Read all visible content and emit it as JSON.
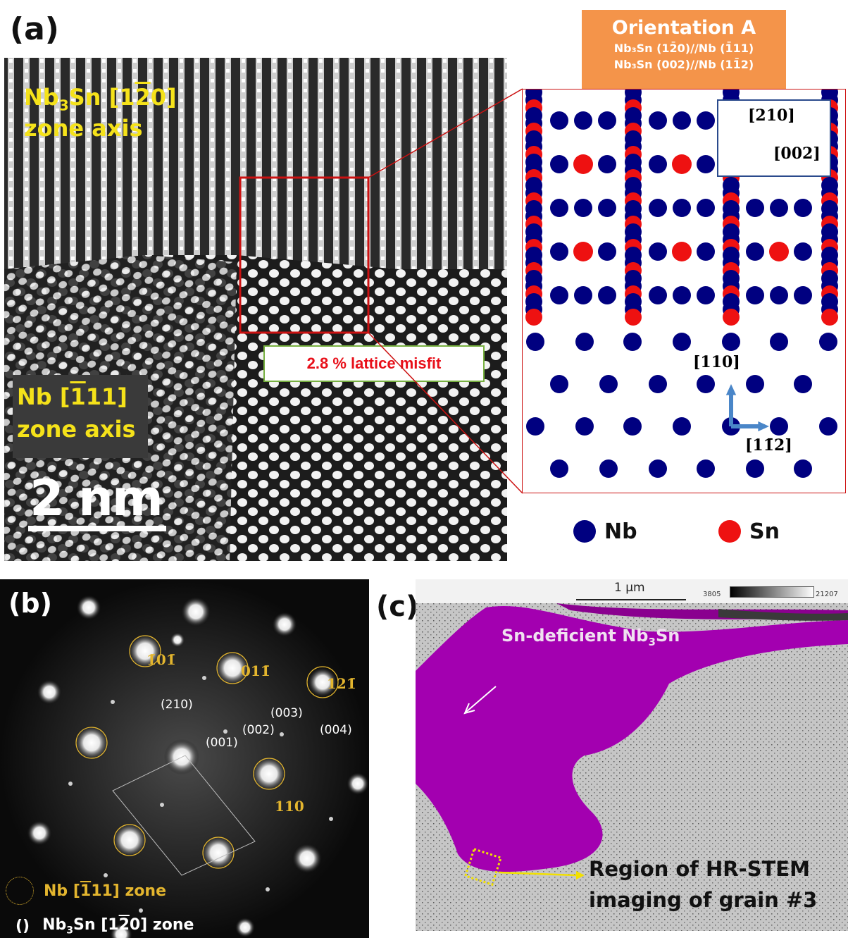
{
  "panel_a": {
    "label": "(a)",
    "hrtem": {
      "upper_label_line1_prefix": "Nb",
      "upper_label_sub": "3",
      "upper_label_line1_mid": "Sn [1",
      "upper_label_line1_bar": "2",
      "upper_label_line1_end": "0]",
      "upper_label_line2": "zone axis",
      "lower_label_line1_prefix": "Nb [",
      "lower_label_line1_bar": "1",
      "lower_label_line1_end": "11]",
      "lower_label_line2": "zone axis",
      "scale_bar_label": "2 nm",
      "misfit_label": "2.8 % lattice misfit"
    },
    "orientation": {
      "title": "Orientation A",
      "line1": "Nb₃Sn (12̄0)//Nb (1̄11)",
      "line2": "Nb₃Sn (002)//Nb (11̄2)"
    },
    "schematic": {
      "dir_210": "[210]",
      "dir_002": "[002]",
      "dir_110": "[110]",
      "dir_112": "[11̄2]"
    },
    "legend": [
      {
        "label": "Nb",
        "color": "#000080"
      },
      {
        "label": "Sn",
        "color": "#ee1111"
      }
    ]
  },
  "panel_b": {
    "label": "(b)",
    "nb_spots": [
      "1̄01̄",
      "011̄",
      "121̄",
      "110"
    ],
    "nb3sn_spots": [
      "(210)",
      "(003)",
      "(002)",
      "(004)",
      "(001)"
    ],
    "legend_nb_prefix": "Nb [",
    "legend_nb_bar": "1",
    "legend_nb_end": "11] zone",
    "legend_nb3sn_marker": "()",
    "legend_nb3sn_prefix": "Nb",
    "legend_nb3sn_sub": "3",
    "legend_nb3sn_mid": "Sn [1",
    "legend_nb3sn_bar": "2",
    "legend_nb3sn_end": "0] zone"
  },
  "panel_c": {
    "label": "(c)",
    "scale_label": "1 μm",
    "colorbar_min": "3805",
    "colorbar_max": "21207",
    "region_label_prefix": "Sn-deficient Nb",
    "region_label_sub": "3",
    "region_label_end": "Sn",
    "annotation_line1": "Region of HR-STEM",
    "annotation_line2": "imaging of grain #3"
  },
  "colors": {
    "nb": "#000080",
    "sn": "#ee1111",
    "orientation_box": "#f4944a",
    "misfit_text": "#e8101a",
    "misfit_border": "#77b040",
    "zoom_box": "#cc1111",
    "schematic_arrow": "#4a86c8",
    "magenta": "#a300b0",
    "spot_yellow": "#e3b52e"
  }
}
